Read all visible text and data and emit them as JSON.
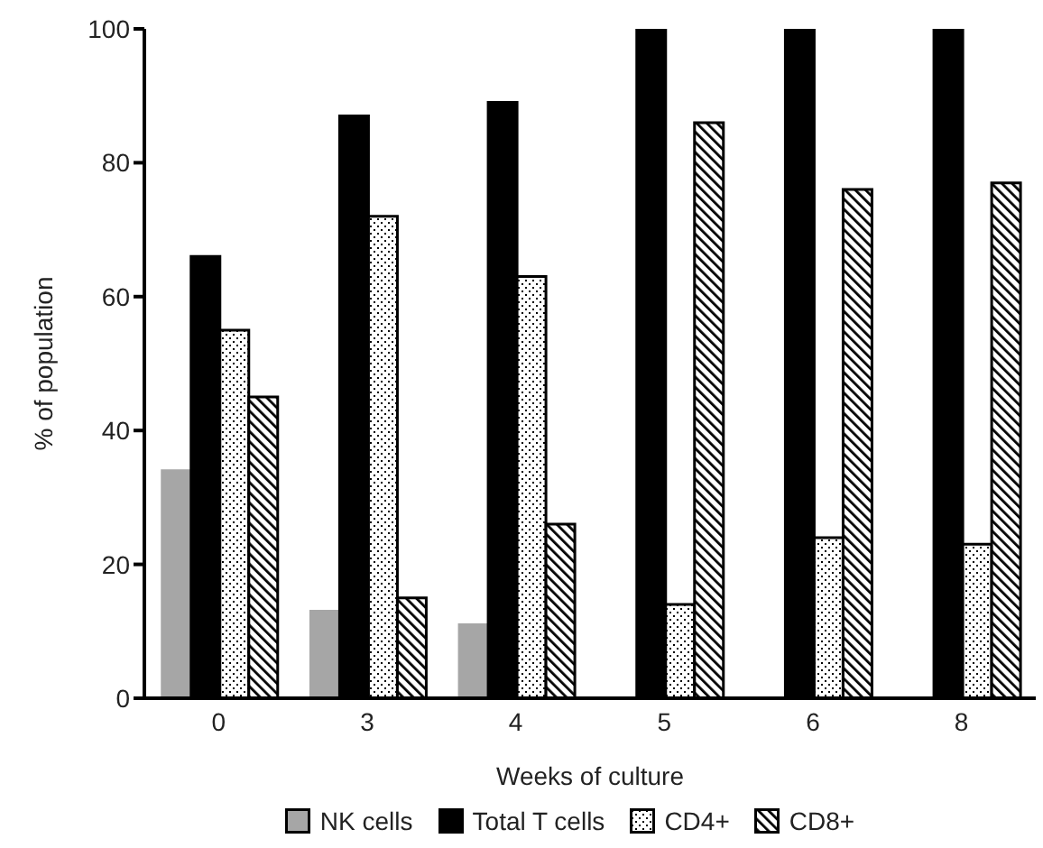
{
  "chart_data": {
    "type": "bar",
    "xlabel": "Weeks of culture",
    "ylabel": "% of population",
    "categories": [
      "0",
      "3",
      "4",
      "5",
      "6",
      "8"
    ],
    "series": [
      {
        "name": "NK cells",
        "color": "#a6a6a6",
        "values": [
          34,
          13,
          11,
          null,
          null,
          null
        ]
      },
      {
        "name": "Total T cells",
        "color": "#000000",
        "values": [
          66,
          87,
          89,
          100,
          100,
          100
        ]
      },
      {
        "name": "CD4+",
        "color": "#000000",
        "values": [
          55,
          72,
          63,
          14,
          24,
          23
        ]
      },
      {
        "name": "CD8+",
        "color": "#000000",
        "values": [
          45,
          15,
          26,
          86,
          76,
          77
        ]
      }
    ],
    "ylim": [
      0,
      100
    ],
    "yticks": [
      0,
      20,
      40,
      60,
      80,
      100
    ],
    "grid": false,
    "legend": "bottom"
  }
}
